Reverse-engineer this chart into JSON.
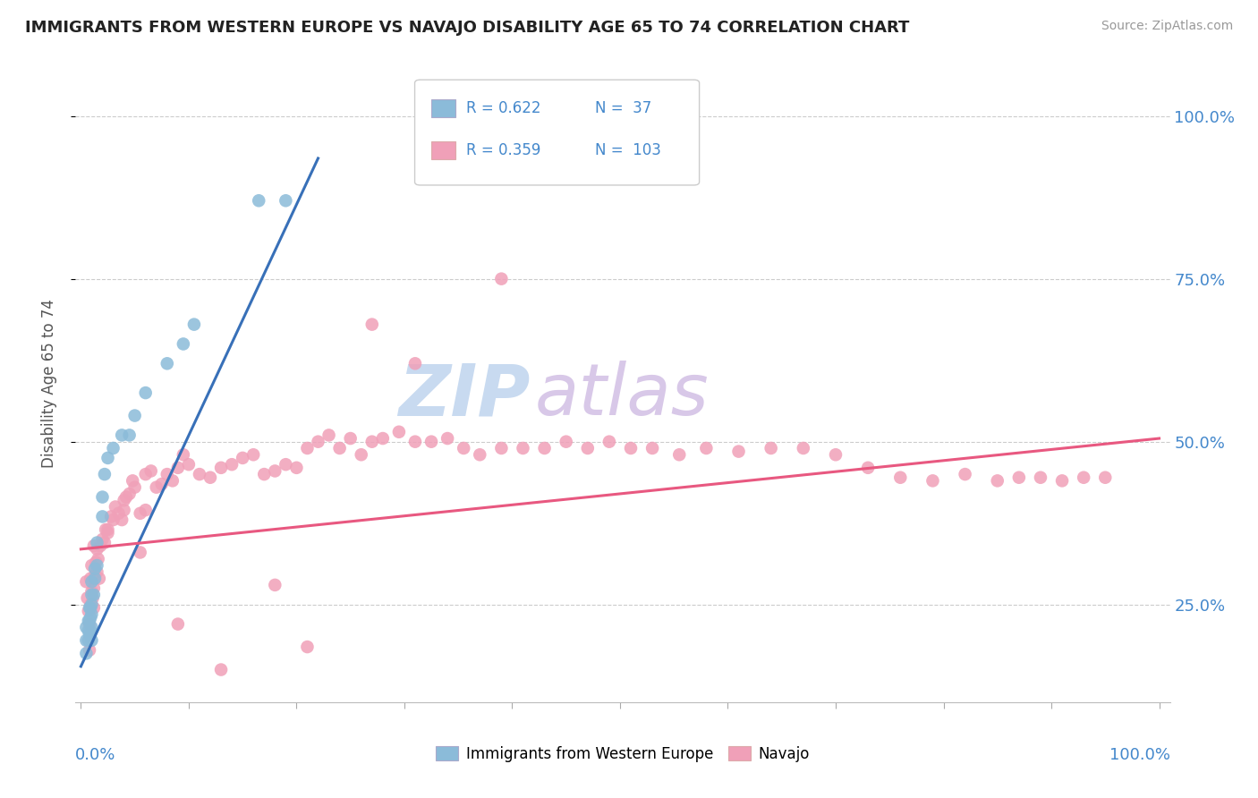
{
  "title": "IMMIGRANTS FROM WESTERN EUROPE VS NAVAJO DISABILITY AGE 65 TO 74 CORRELATION CHART",
  "source": "Source: ZipAtlas.com",
  "ylabel": "Disability Age 65 to 74",
  "ytick_vals": [
    0.25,
    0.5,
    0.75,
    1.0
  ],
  "legend1_r": "0.622",
  "legend1_n": "37",
  "legend2_r": "0.359",
  "legend2_n": "103",
  "blue_color": "#8bbbd9",
  "pink_color": "#f0a0b8",
  "blue_line_color": "#3870b8",
  "pink_line_color": "#e85880",
  "text_color": "#4488cc",
  "blue_scatter_x": [
    0.005,
    0.005,
    0.005,
    0.007,
    0.007,
    0.007,
    0.008,
    0.008,
    0.008,
    0.009,
    0.009,
    0.009,
    0.01,
    0.01,
    0.01,
    0.01,
    0.01,
    0.01,
    0.012,
    0.013,
    0.013,
    0.015,
    0.015,
    0.02,
    0.02,
    0.022,
    0.025,
    0.03,
    0.038,
    0.045,
    0.05,
    0.06,
    0.08,
    0.095,
    0.105,
    0.165,
    0.19
  ],
  "blue_scatter_y": [
    0.175,
    0.195,
    0.215,
    0.195,
    0.21,
    0.225,
    0.205,
    0.225,
    0.245,
    0.21,
    0.23,
    0.245,
    0.195,
    0.215,
    0.235,
    0.25,
    0.265,
    0.285,
    0.265,
    0.29,
    0.305,
    0.31,
    0.345,
    0.385,
    0.415,
    0.45,
    0.475,
    0.49,
    0.51,
    0.51,
    0.54,
    0.575,
    0.62,
    0.65,
    0.68,
    0.87,
    0.87
  ],
  "pink_scatter_x": [
    0.005,
    0.006,
    0.007,
    0.008,
    0.009,
    0.009,
    0.01,
    0.01,
    0.011,
    0.012,
    0.012,
    0.013,
    0.014,
    0.015,
    0.015,
    0.016,
    0.017,
    0.018,
    0.02,
    0.022,
    0.023,
    0.025,
    0.028,
    0.03,
    0.032,
    0.035,
    0.038,
    0.04,
    0.042,
    0.045,
    0.048,
    0.05,
    0.055,
    0.06,
    0.065,
    0.07,
    0.075,
    0.08,
    0.085,
    0.09,
    0.095,
    0.1,
    0.11,
    0.12,
    0.13,
    0.14,
    0.15,
    0.16,
    0.17,
    0.18,
    0.19,
    0.2,
    0.21,
    0.22,
    0.23,
    0.24,
    0.25,
    0.26,
    0.27,
    0.28,
    0.295,
    0.31,
    0.325,
    0.34,
    0.355,
    0.37,
    0.39,
    0.41,
    0.43,
    0.45,
    0.47,
    0.49,
    0.51,
    0.53,
    0.555,
    0.58,
    0.61,
    0.64,
    0.67,
    0.7,
    0.73,
    0.76,
    0.79,
    0.82,
    0.85,
    0.87,
    0.89,
    0.91,
    0.93,
    0.95,
    0.31,
    0.27,
    0.13,
    0.39,
    0.21,
    0.06,
    0.04,
    0.025,
    0.18,
    0.09,
    0.055,
    0.012,
    0.008
  ],
  "pink_scatter_y": [
    0.285,
    0.26,
    0.24,
    0.22,
    0.25,
    0.29,
    0.27,
    0.31,
    0.26,
    0.245,
    0.275,
    0.295,
    0.315,
    0.3,
    0.335,
    0.32,
    0.29,
    0.34,
    0.35,
    0.345,
    0.365,
    0.36,
    0.385,
    0.38,
    0.4,
    0.39,
    0.38,
    0.395,
    0.415,
    0.42,
    0.44,
    0.43,
    0.39,
    0.395,
    0.455,
    0.43,
    0.435,
    0.45,
    0.44,
    0.46,
    0.48,
    0.465,
    0.45,
    0.445,
    0.46,
    0.465,
    0.475,
    0.48,
    0.45,
    0.455,
    0.465,
    0.46,
    0.49,
    0.5,
    0.51,
    0.49,
    0.505,
    0.48,
    0.5,
    0.505,
    0.515,
    0.5,
    0.5,
    0.505,
    0.49,
    0.48,
    0.49,
    0.49,
    0.49,
    0.5,
    0.49,
    0.5,
    0.49,
    0.49,
    0.48,
    0.49,
    0.485,
    0.49,
    0.49,
    0.48,
    0.46,
    0.445,
    0.44,
    0.45,
    0.44,
    0.445,
    0.445,
    0.44,
    0.445,
    0.445,
    0.62,
    0.68,
    0.15,
    0.75,
    0.185,
    0.45,
    0.41,
    0.365,
    0.28,
    0.22,
    0.33,
    0.34,
    0.18
  ],
  "blue_trend_x": [
    0.0,
    0.22
  ],
  "blue_trend_y": [
    0.155,
    0.935
  ],
  "pink_trend_x": [
    0.0,
    1.0
  ],
  "pink_trend_y": [
    0.335,
    0.505
  ],
  "xlim": [
    -0.005,
    1.01
  ],
  "ylim": [
    0.1,
    1.08
  ]
}
